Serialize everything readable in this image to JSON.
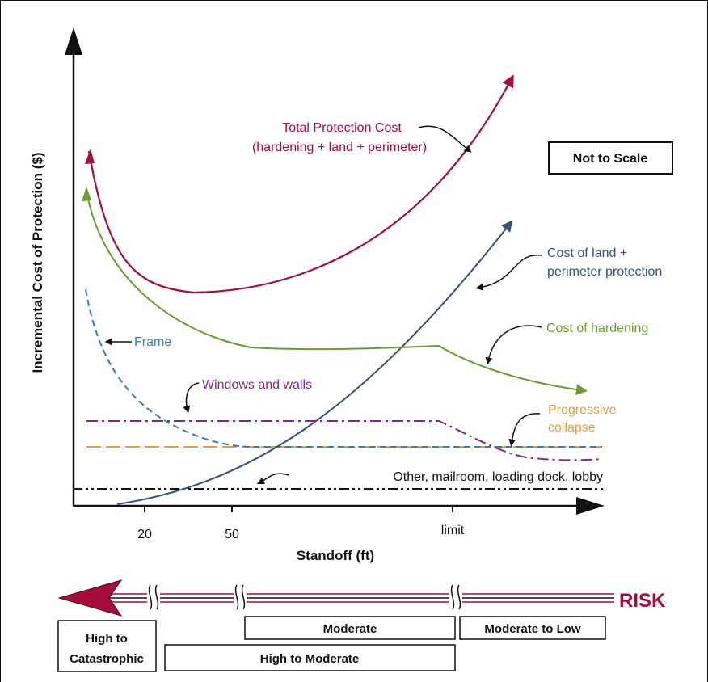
{
  "diagram": {
    "y_axis_label": "Incremental Cost of Protection ($)",
    "x_axis_label": "Standoff (ft)",
    "x_ticks": [
      "20",
      "50",
      "limit"
    ],
    "not_to_scale": "Not to Scale",
    "curves": {
      "total": {
        "label_line1": "Total Protection Cost",
        "label_line2": "(hardening + land + perimeter)",
        "color": "#a50d3b"
      },
      "land": {
        "label_line1": "Cost of land +",
        "label_line2": "perimeter protection",
        "color": "#34517a"
      },
      "hardening": {
        "label": "Cost of hardening",
        "color": "#6a9b34"
      },
      "frame": {
        "label": "Frame",
        "color": "#3b7ea3"
      },
      "windows": {
        "label": "Windows and walls",
        "color": "#7a2b7e"
      },
      "progressive": {
        "label_line1": "Progressive",
        "label_line2": "collapse",
        "color": "#e0a04a"
      },
      "other": {
        "label": "Other, mailroom, loading dock, lobby",
        "color": "#111111"
      }
    },
    "risk": {
      "label": "RISK",
      "color": "#a50d3b",
      "bands": {
        "high_catastrophic_line1": "High to",
        "high_catastrophic_line2": "Catastrophic",
        "high_moderate": "High to Moderate",
        "moderate": "Moderate",
        "moderate_low": "Moderate to Low"
      }
    }
  }
}
